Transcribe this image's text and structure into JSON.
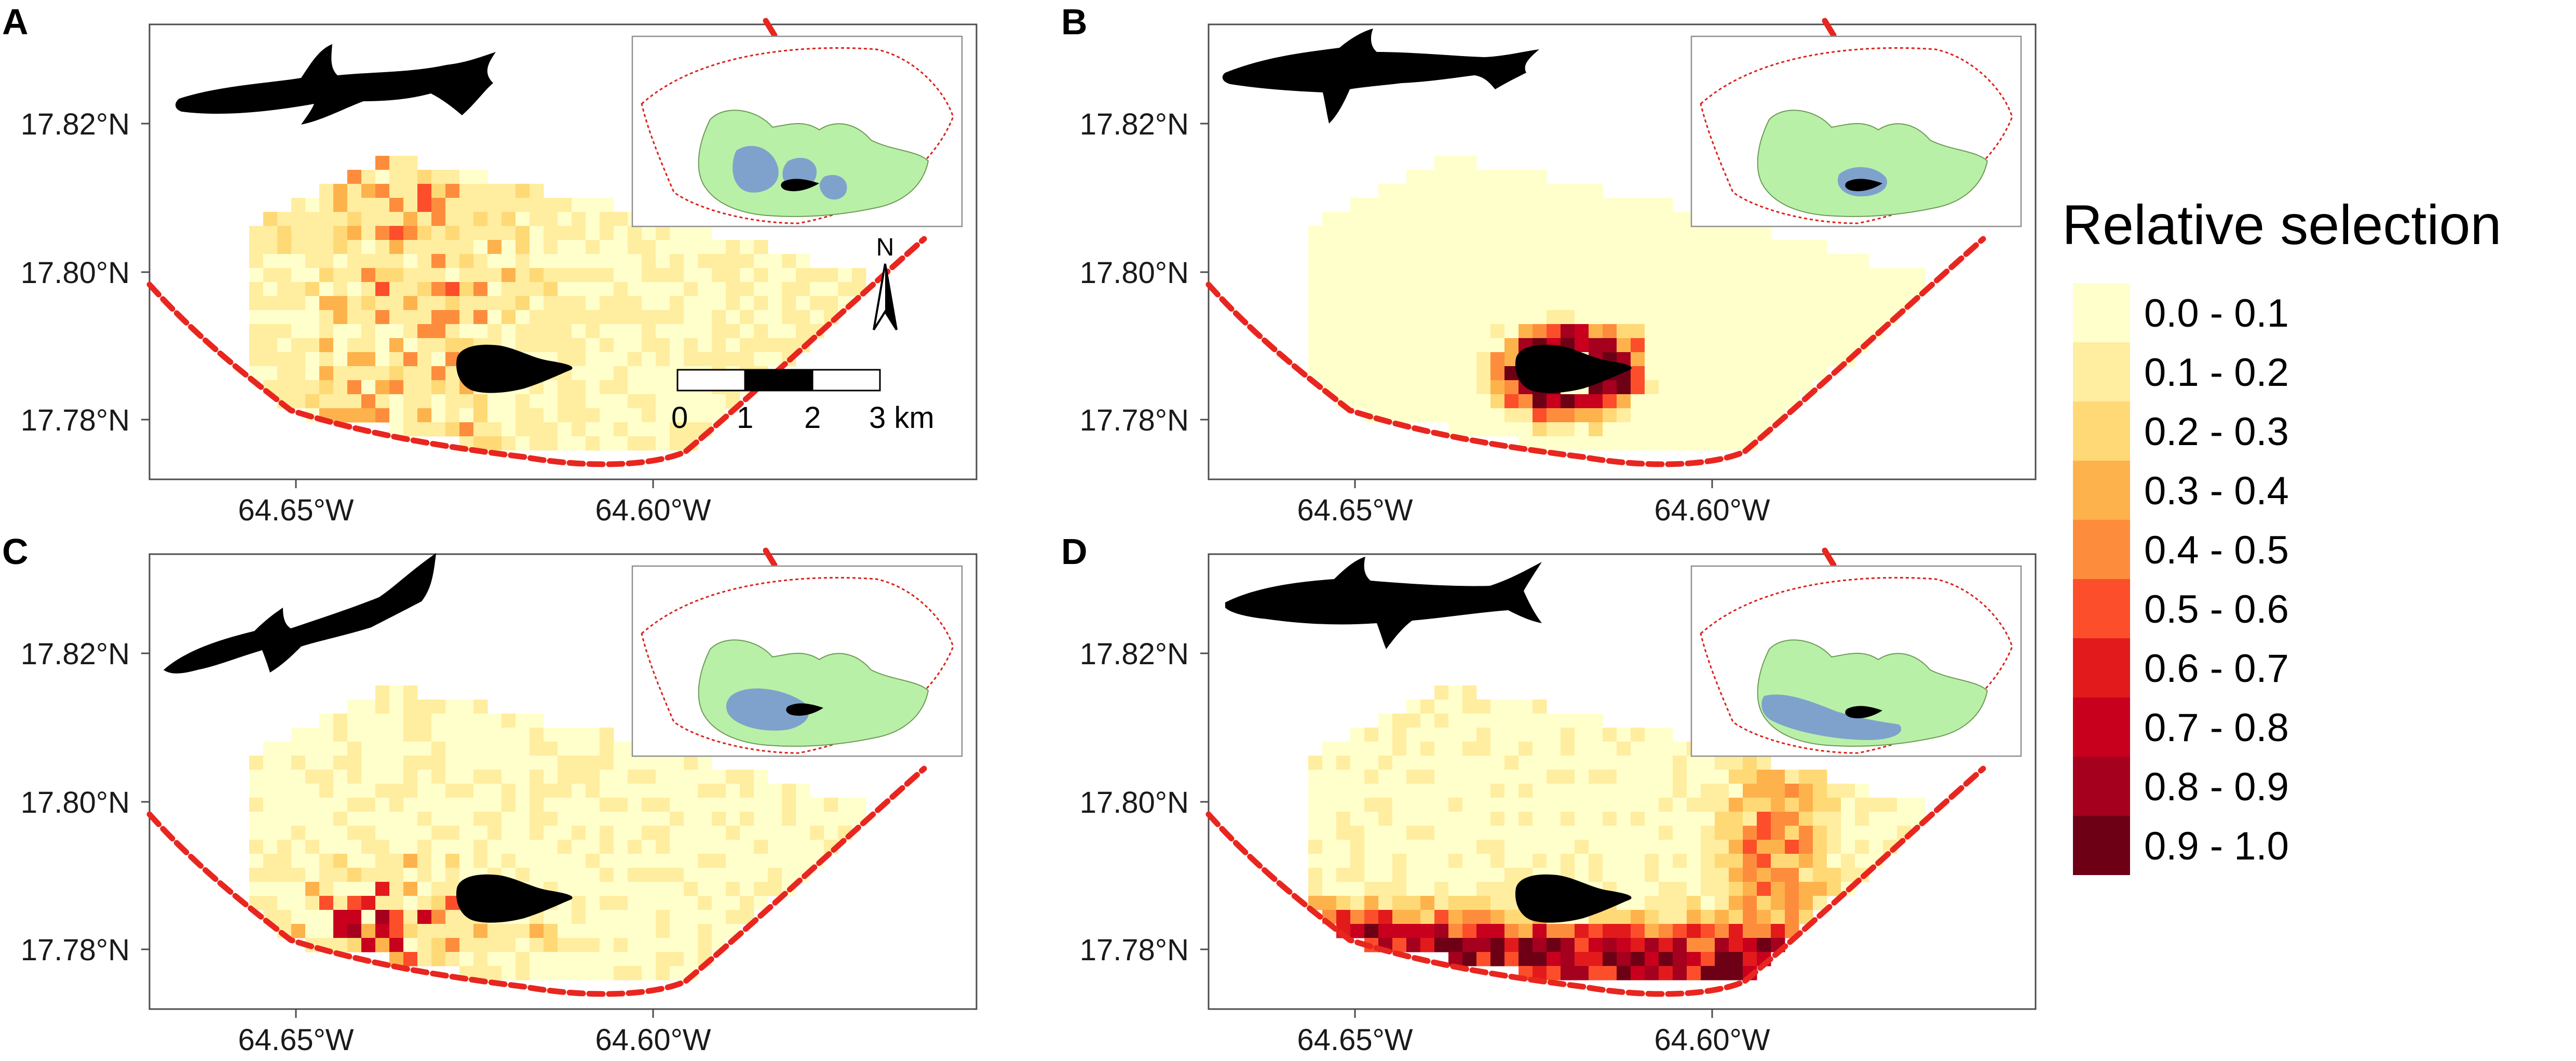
{
  "legend": {
    "title": "Relative selection",
    "classes": [
      {
        "label": "0.0 - 0.1",
        "color": "#FFFFCC"
      },
      {
        "label": "0.1 - 0.2",
        "color": "#FFEDA0"
      },
      {
        "label": "0.2 - 0.3",
        "color": "#FED976"
      },
      {
        "label": "0.3 - 0.4",
        "color": "#FEB24C"
      },
      {
        "label": "0.4 - 0.5",
        "color": "#FD8D3C"
      },
      {
        "label": "0.5 - 0.6",
        "color": "#FC4E2A"
      },
      {
        "label": "0.6 - 0.7",
        "color": "#E31A1C"
      },
      {
        "label": "0.7 - 0.8",
        "color": "#C8001D"
      },
      {
        "label": "0.8 - 0.9",
        "color": "#A5001E"
      },
      {
        "label": "0.9 - 1.0",
        "color": "#6E0016"
      }
    ]
  },
  "axes": {
    "lat_ticks": [
      "17.82°N",
      "17.80°N",
      "17.78°N"
    ],
    "lon_ticks": [
      "64.65°W",
      "64.60°W"
    ]
  },
  "scale_bar": {
    "labels": [
      "0",
      "1",
      "2",
      "3 km"
    ]
  },
  "north_arrow": {
    "label": "N"
  },
  "panels": [
    {
      "letter": "A",
      "pattern": "scattered"
    },
    {
      "letter": "B",
      "pattern": "island-ring"
    },
    {
      "letter": "C",
      "pattern": "southwest"
    },
    {
      "letter": "D",
      "pattern": "south-band"
    }
  ],
  "colors": {
    "boundary": "#E8261F",
    "inset_boundary": "#D9231C",
    "inset_reef": "#B9F0A8",
    "inset_core": "#7FA2CC",
    "island": "#000000",
    "frame": "#4D4D4D"
  }
}
